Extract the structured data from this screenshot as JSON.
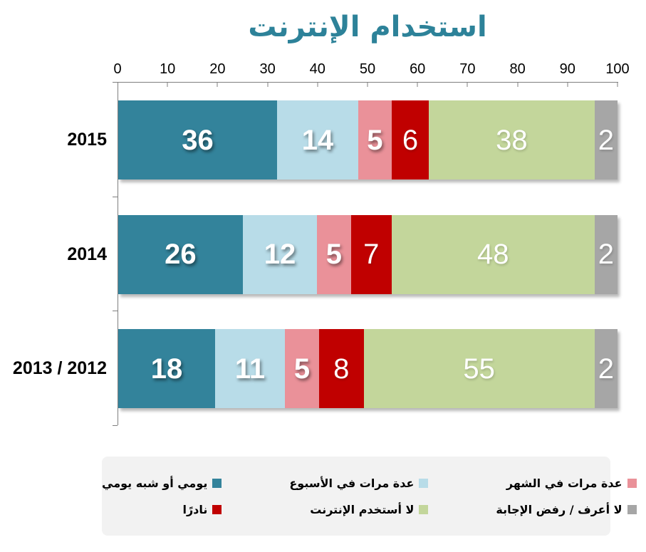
{
  "title": "استخدام الإنترنت",
  "title_color": "#2D8299",
  "chart_data": {
    "type": "bar",
    "orientation": "horizontal-stacked",
    "title": "استخدام الإنترنت",
    "categories": [
      "2015",
      "2014",
      "2013 / 2012"
    ],
    "series": [
      {
        "name": "يومي أو شبه يومي",
        "color": "#33839B",
        "values": [
          36,
          26,
          18
        ]
      },
      {
        "name": "عدة مرات في الأسبوع",
        "color": "#B8DCE8",
        "values": [
          14,
          12,
          11
        ]
      },
      {
        "name": "عدة مرات في الشهر",
        "color": "#EA9199",
        "values": [
          5,
          5,
          5
        ]
      },
      {
        "name": "نادرًا",
        "color": "#C00000",
        "values": [
          6,
          7,
          8
        ]
      },
      {
        "name": "لا أستخدم الإنترنت",
        "color": "#C3D69B",
        "values": [
          38,
          48,
          55
        ]
      },
      {
        "name": "لا أعرف / رفض الإجابة",
        "color": "#A6A6A6",
        "values": [
          2,
          2,
          2
        ]
      }
    ],
    "x_axis": {
      "min": 0,
      "max": 100,
      "ticks": [
        0,
        10,
        20,
        30,
        40,
        50,
        60,
        70,
        80,
        90,
        100
      ],
      "position": "top"
    },
    "grid": false,
    "legend_position": "bottom",
    "legend_background": "#F2F2F2",
    "axis_color": "#7F7F7F"
  }
}
